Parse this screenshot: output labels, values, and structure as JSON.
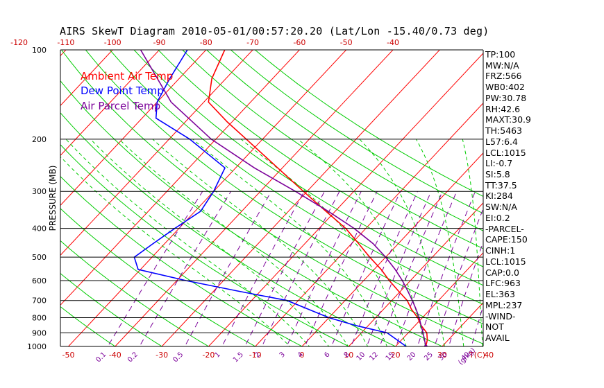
{
  "title": "AIRS SkewT Diagram 2010-05-01/00:57:20.20 (Lat/Lon -15.40/0.73 deg)",
  "legend": [
    {
      "label": "Ambient Air Temp",
      "color": "#ff0000"
    },
    {
      "label": "Dew Point Temp",
      "color": "#0000ff"
    },
    {
      "label": "Air Parcel Temp",
      "color": "#7b0099"
    }
  ],
  "stats": [
    "TP:100",
    "MW:N/A",
    "FRZ:566",
    "WB0:402",
    "PW:30.78",
    "RH:42.6",
    "MAXT:30.9",
    "TH:5463",
    "L57:6.4",
    "LCL:1015",
    "LI:-0.7",
    "SI:5.8",
    "TT:37.5",
    "KI:284",
    "SW:N/A",
    "EI:0.2",
    "-PARCEL-",
    "CAPE:150",
    "CINH:1",
    "LCL:1015",
    "CAP:0.0",
    "LFC:963",
    "EL:363",
    "MPL:237",
    "-WIND-",
    "NOT",
    "AVAIL"
  ],
  "colors": {
    "isotherm": "#ff0000",
    "dry_adiabat": "#00cc00",
    "moist_adiabat": "#00cc00",
    "mixing_ratio": "#7b0099",
    "isobar": "#000000"
  },
  "chart_data": {
    "type": "line",
    "yscale": "log",
    "ylabel": "PRESSURE (MB)",
    "ylim": [
      1000,
      100
    ],
    "yticks": [
      100,
      200,
      300,
      400,
      500,
      600,
      700,
      800,
      900,
      1000
    ],
    "bottom_ticks": [
      -50,
      -40,
      -30,
      -20,
      -10,
      0,
      10,
      20,
      30,
      40
    ],
    "bottom_axis_label": "T(C)",
    "top_ticks": [
      -120,
      -110,
      -100,
      -90,
      -80,
      -70,
      -60,
      -50,
      -40
    ],
    "mixing_ratio_labels": [
      "0.1",
      "0.2",
      "0.5",
      "1",
      "1.5",
      "2",
      "3",
      "4",
      "6",
      "8",
      "10",
      "12",
      "15",
      "20",
      "25",
      "30",
      "40"
    ],
    "mixing_ratio_unit": "g/kg",
    "series": [
      {
        "name": "Ambient Air Temp",
        "color": "#ff0000",
        "points": [
          [
            26.5,
            1000
          ],
          [
            25.5,
            950
          ],
          [
            24,
            900
          ],
          [
            21.3,
            850
          ],
          [
            19,
            800
          ],
          [
            16,
            750
          ],
          [
            13.3,
            700
          ],
          [
            9.5,
            650
          ],
          [
            5.5,
            600
          ],
          [
            1.5,
            550
          ],
          [
            -3.4,
            500
          ],
          [
            -8.5,
            450
          ],
          [
            -14.3,
            400
          ],
          [
            -22,
            350
          ],
          [
            -30.8,
            300
          ],
          [
            -41,
            250
          ],
          [
            -53.5,
            200
          ],
          [
            -61,
            175
          ],
          [
            -69,
            150
          ],
          [
            -73,
            125
          ],
          [
            -76,
            100
          ]
        ]
      },
      {
        "name": "Dew Point Temp",
        "color": "#0000ff",
        "points": [
          [
            22.3,
            1000
          ],
          [
            19,
            950
          ],
          [
            15.5,
            900
          ],
          [
            7.3,
            850
          ],
          [
            0,
            800
          ],
          [
            -6,
            750
          ],
          [
            -12.4,
            700
          ],
          [
            -25,
            650
          ],
          [
            -38,
            600
          ],
          [
            -50.5,
            550
          ],
          [
            -53.8,
            500
          ],
          [
            -52.5,
            450
          ],
          [
            -50.9,
            400
          ],
          [
            -48.8,
            350
          ],
          [
            -50,
            300
          ],
          [
            -52.3,
            250
          ],
          [
            -65.6,
            200
          ],
          [
            -77,
            170
          ],
          [
            -80,
            150
          ],
          [
            -82,
            125
          ],
          [
            -84,
            100
          ]
        ]
      },
      {
        "name": "Air Parcel Temp",
        "color": "#7b0099",
        "points": [
          [
            26.5,
            1000
          ],
          [
            24.9,
            950
          ],
          [
            23.2,
            900
          ],
          [
            21.3,
            850
          ],
          [
            19.3,
            800
          ],
          [
            17,
            750
          ],
          [
            14.4,
            700
          ],
          [
            11.5,
            650
          ],
          [
            8.3,
            600
          ],
          [
            4.5,
            550
          ],
          [
            0,
            500
          ],
          [
            -5.4,
            450
          ],
          [
            -12.5,
            400
          ],
          [
            -21.5,
            350
          ],
          [
            -32.5,
            300
          ],
          [
            -46,
            250
          ],
          [
            -61,
            200
          ],
          [
            -77,
            150
          ],
          [
            -94,
            100
          ]
        ]
      }
    ]
  }
}
